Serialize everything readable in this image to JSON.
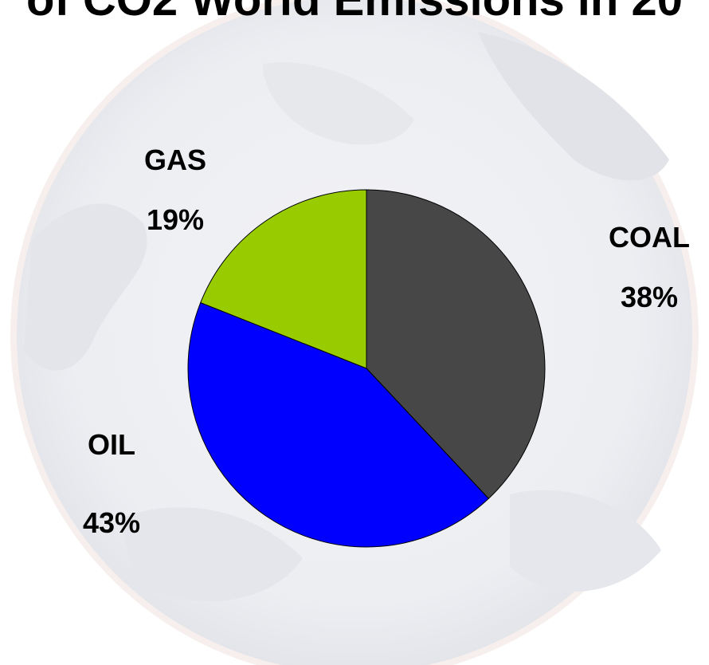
{
  "chart_data": {
    "type": "pie",
    "title": "of CO2 World Emissions in 20",
    "slices": [
      {
        "label": "COAL",
        "value": 38,
        "value_label": "38%",
        "color": "#474747"
      },
      {
        "label": "OIL",
        "value": 43,
        "value_label": "43%",
        "color": "#0000ff"
      },
      {
        "label": "GAS",
        "value": 19,
        "value_label": "19%",
        "color": "#99cc00"
      }
    ],
    "start": "12 o'clock",
    "direction": "clockwise",
    "legend": "none",
    "label_placement": "outside"
  }
}
